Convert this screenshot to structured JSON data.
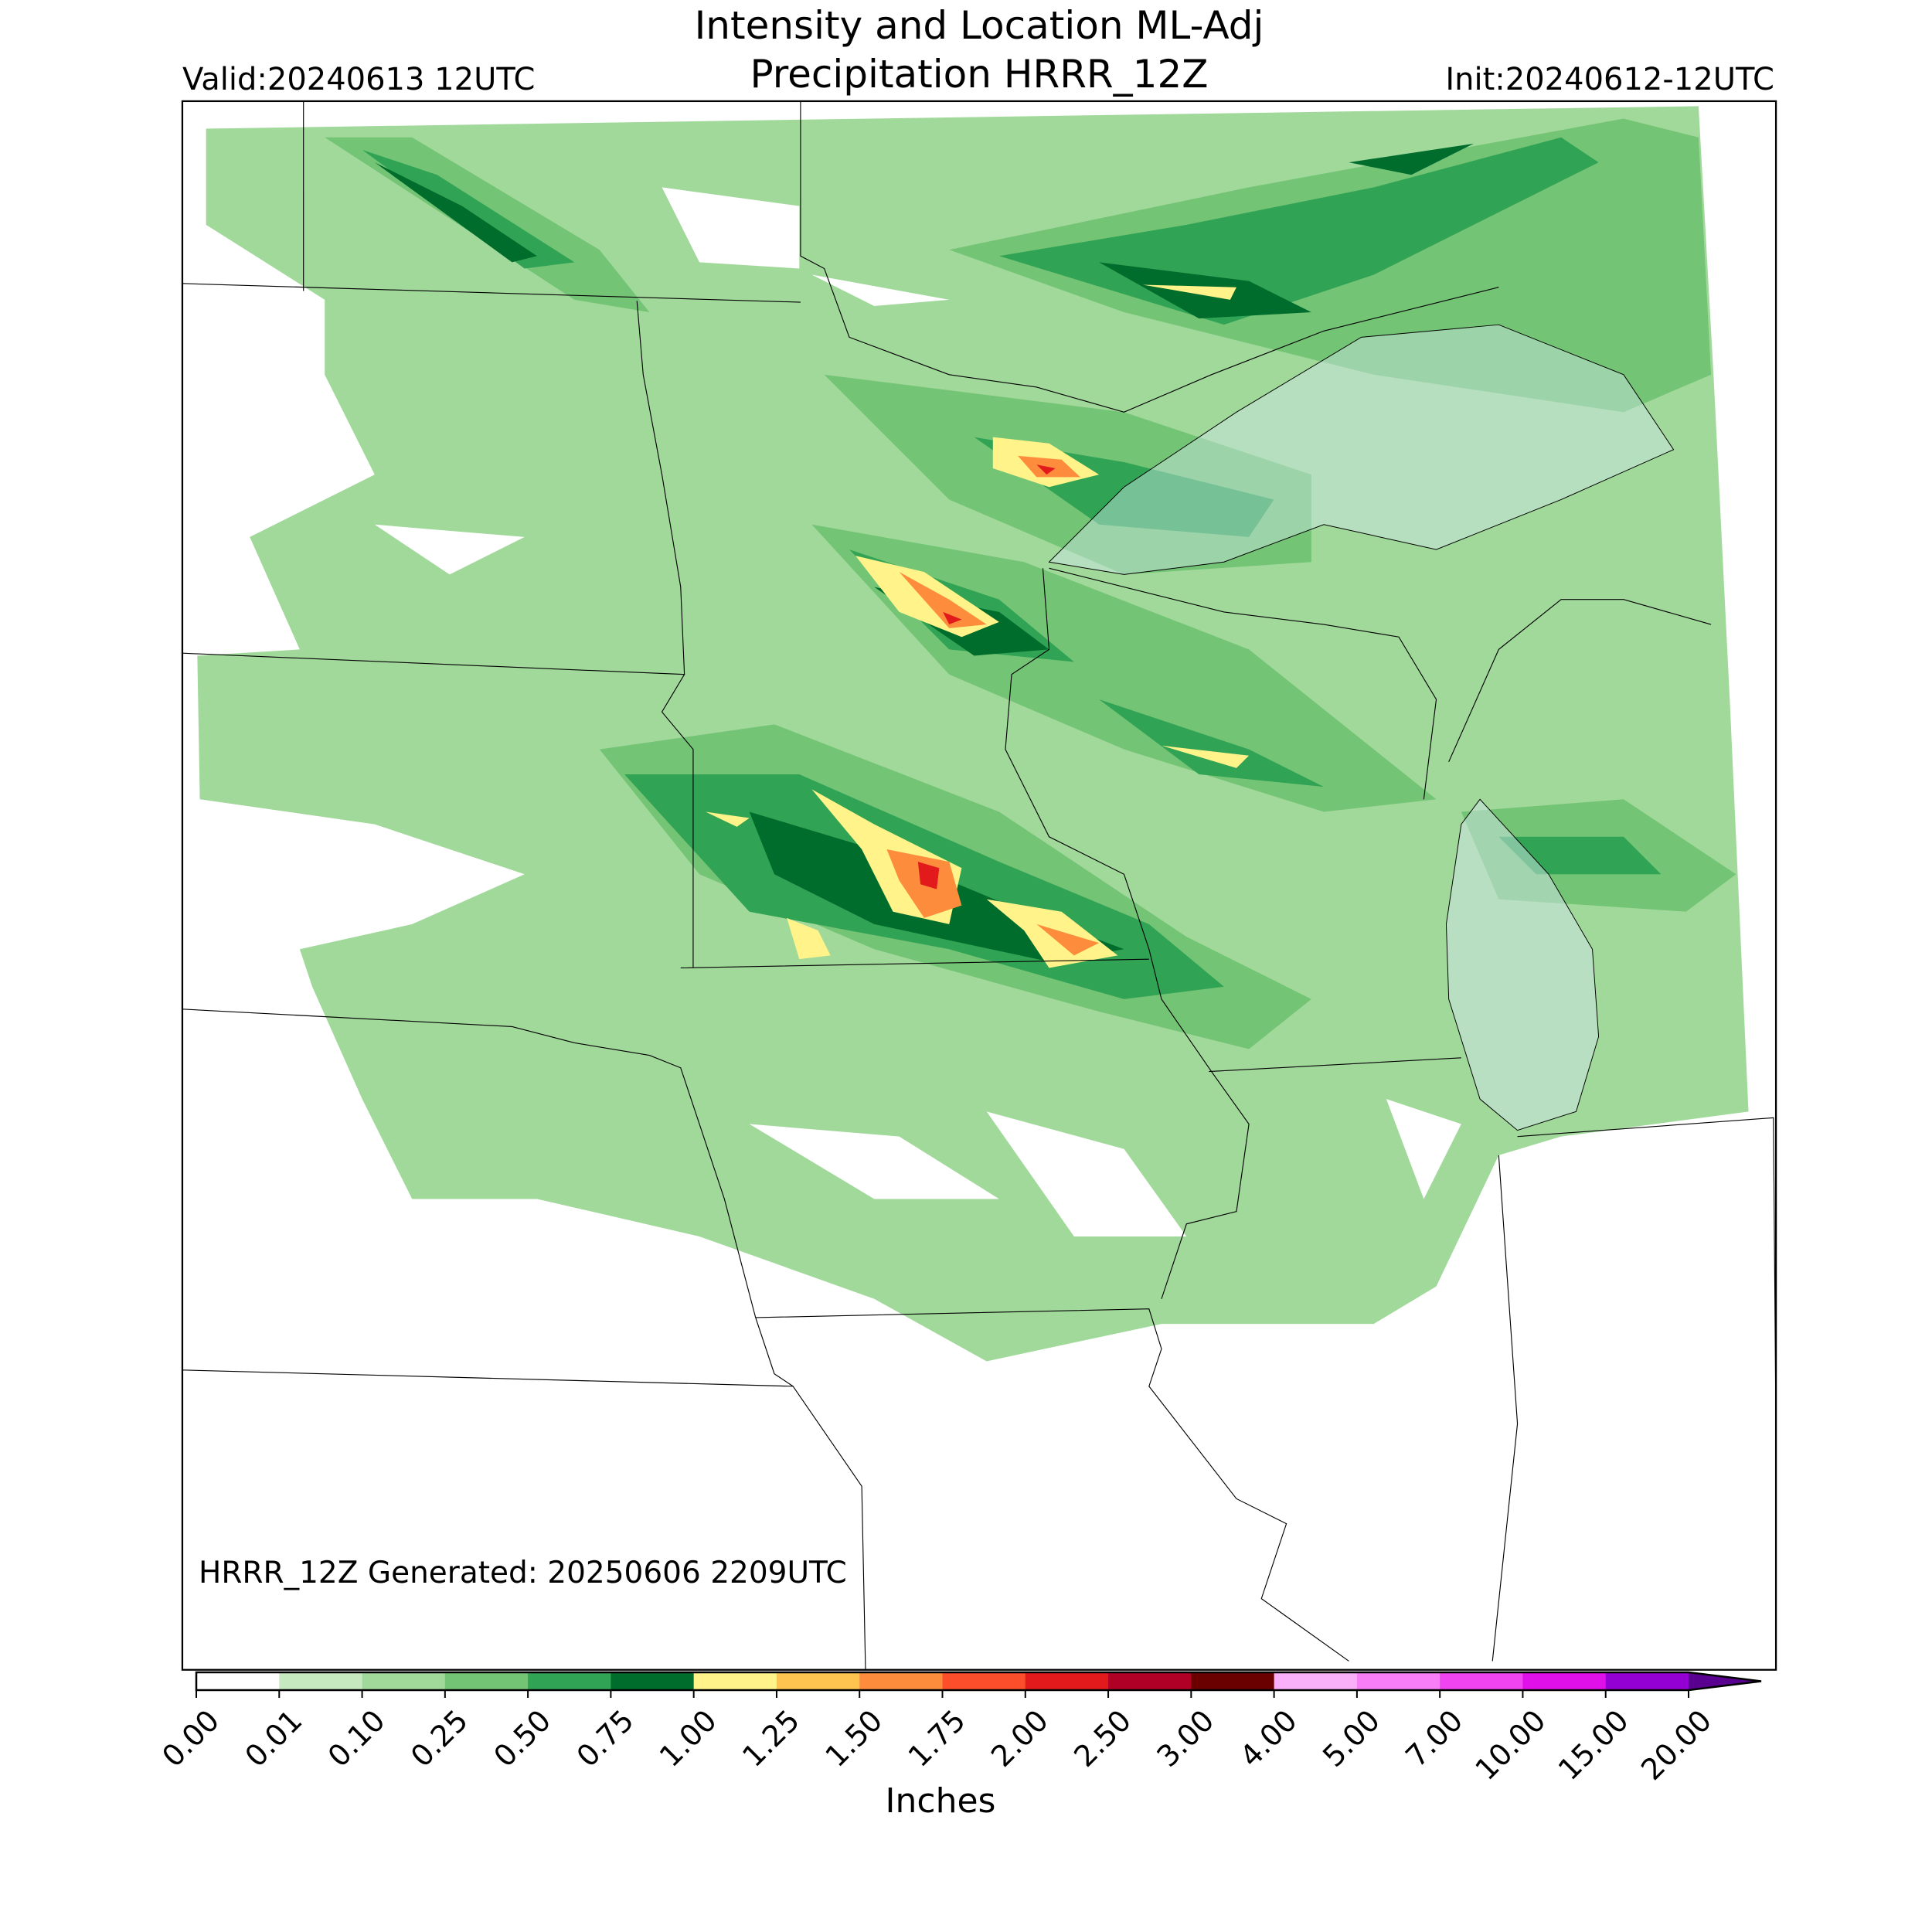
{
  "header": {
    "title": [
      "Intensity and Location ML-Adj",
      "Precipitation HRRR_12Z"
    ],
    "valid": "Valid:20240613 12UTC",
    "init": "Init:20240612-12UTC"
  },
  "map": {
    "note": "HRRR_12Z Generated: 20250606 2209UTC"
  },
  "colorbar": {
    "label": "Inches",
    "ticks": [
      "0.00",
      "0.01",
      "0.10",
      "0.25",
      "0.50",
      "0.75",
      "1.00",
      "1.25",
      "1.50",
      "1.75",
      "2.00",
      "2.50",
      "3.00",
      "4.00",
      "5.00",
      "7.00",
      "10.00",
      "15.00",
      "20.00"
    ],
    "colors": [
      "#ffffff",
      "#c7e9c0",
      "#a1d99b",
      "#74c476",
      "#31a354",
      "#006d2c",
      "#fff38a",
      "#fec44f",
      "#fd8d3c",
      "#fc4e2a",
      "#e31a1c",
      "#b10026",
      "#6b0000",
      "#f9b0f9",
      "#f77ef7",
      "#f044f0",
      "#e010e8",
      "#9400d3"
    ],
    "over_color": "#5a0090"
  }
}
